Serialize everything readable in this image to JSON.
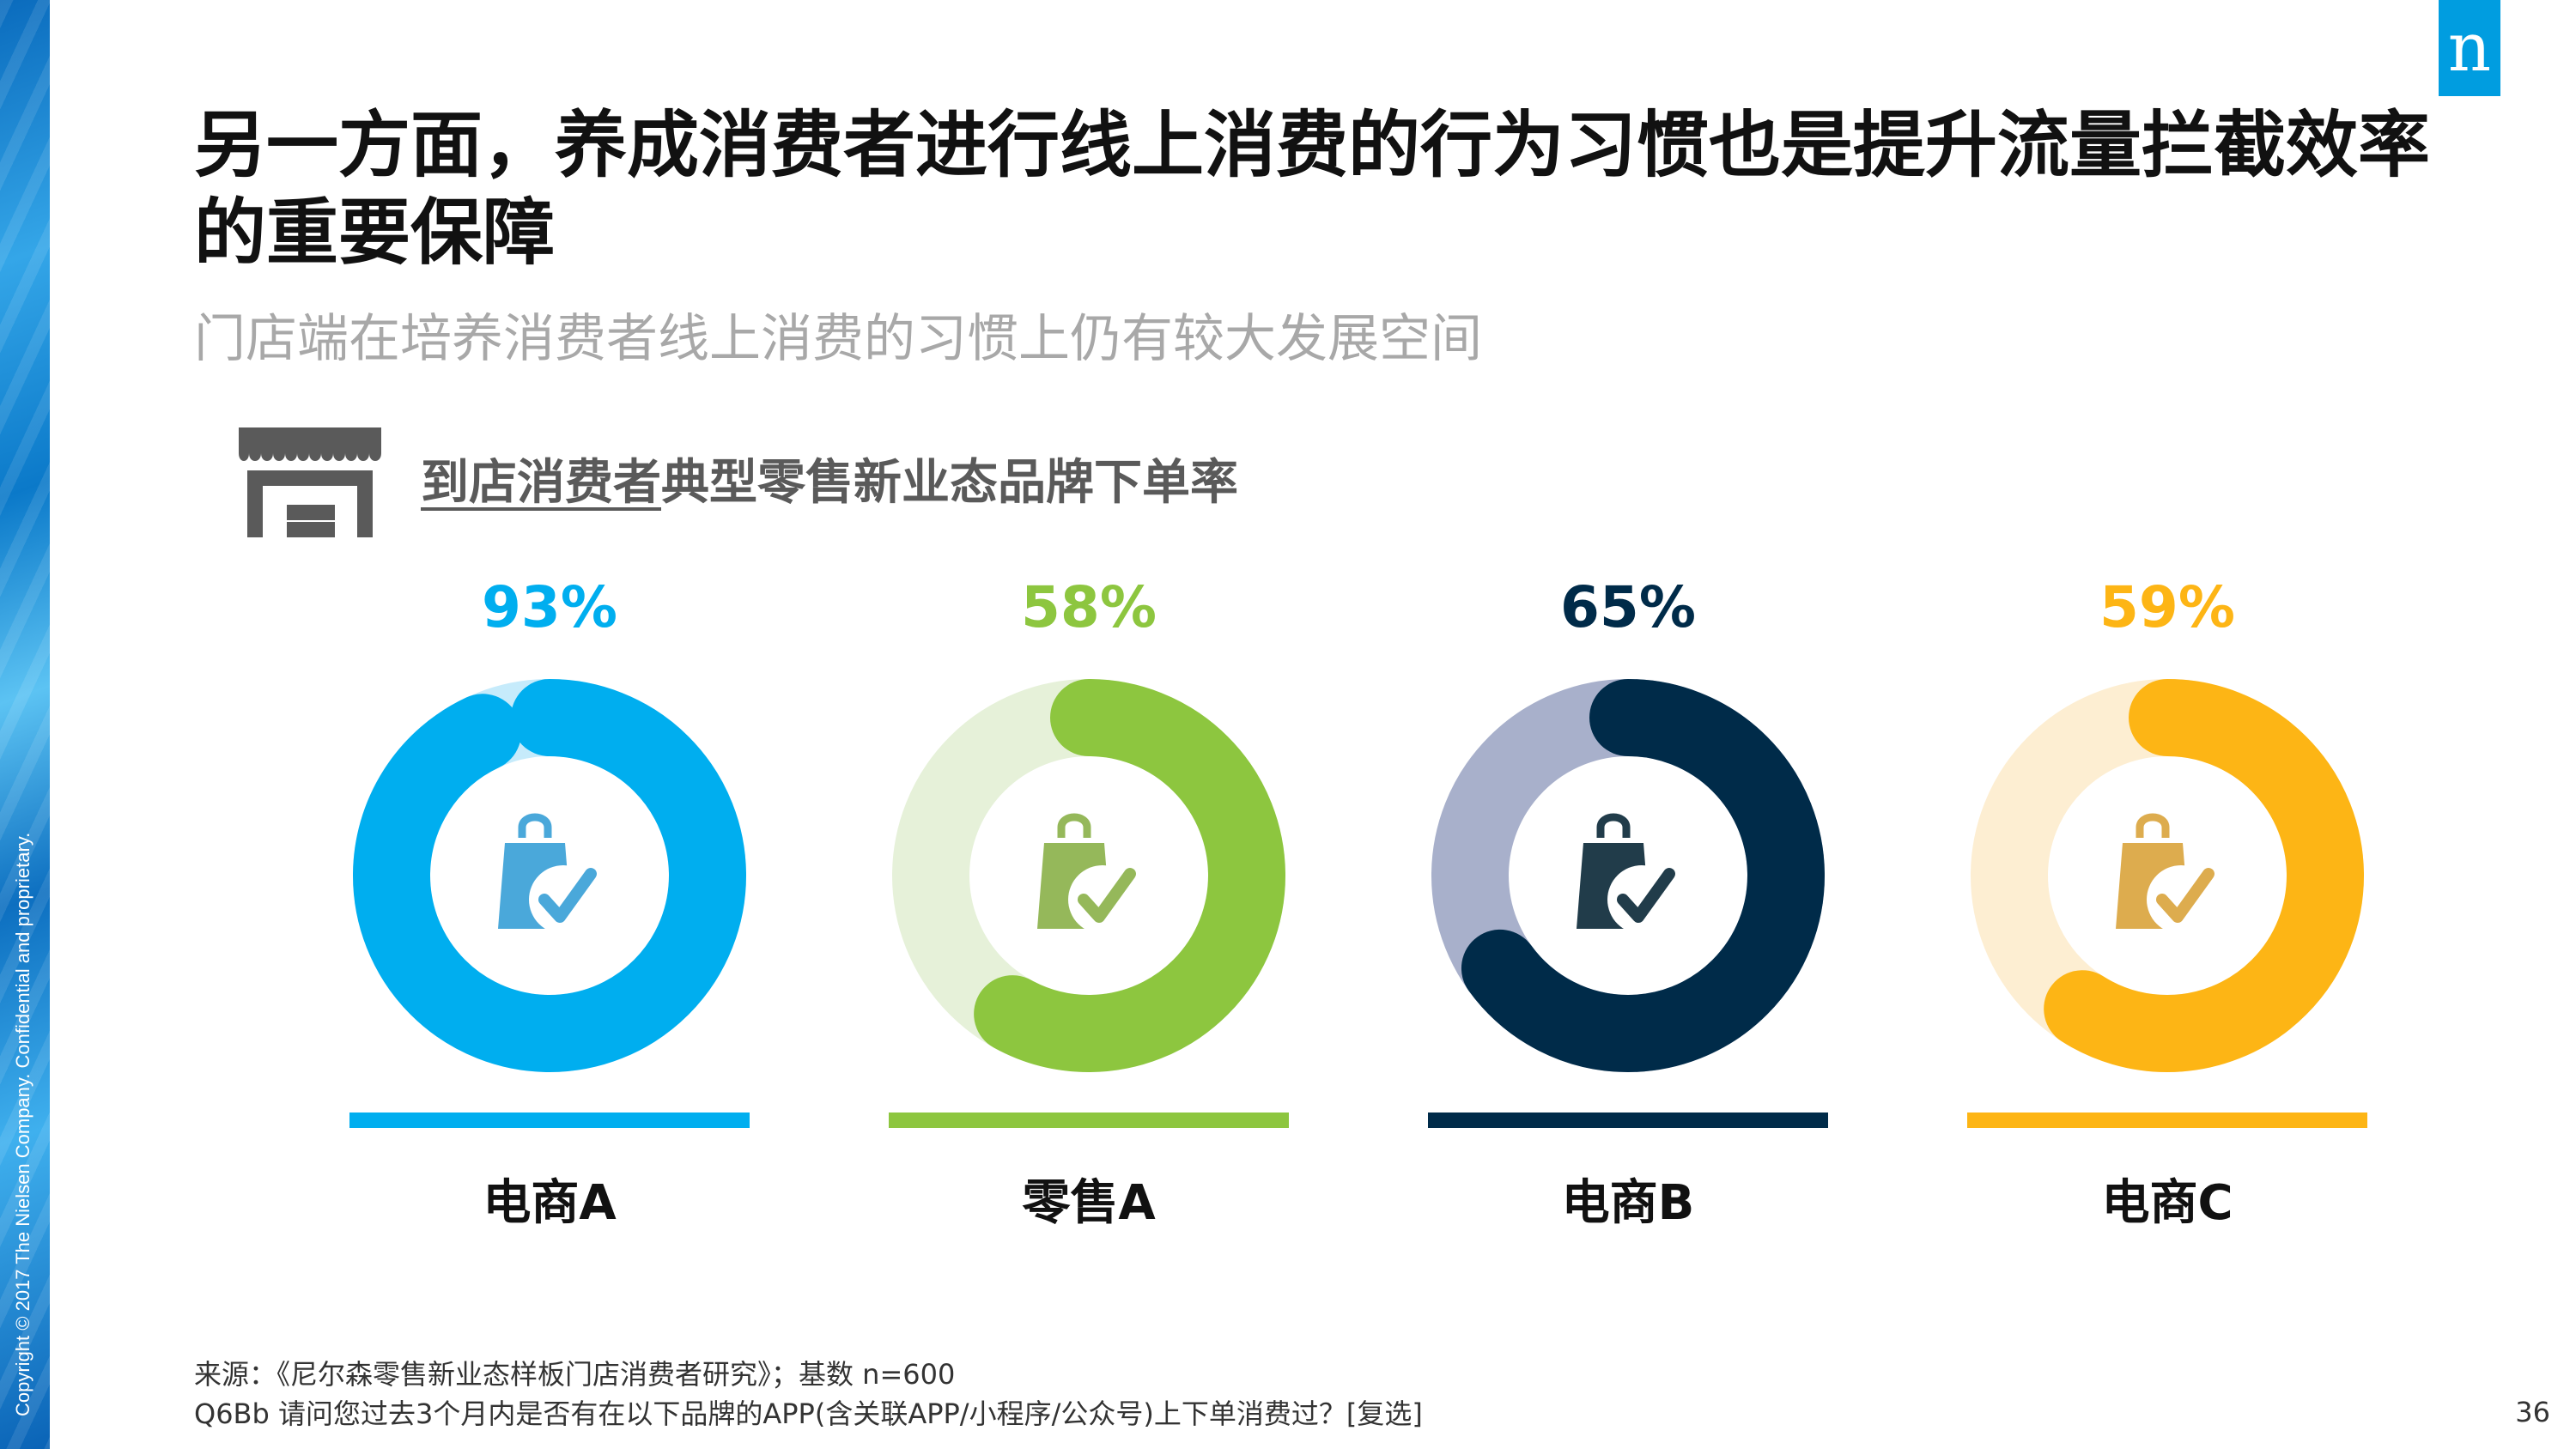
{
  "brand": {
    "logo_letter": "n",
    "copyright": "Copyright © 2017 The Nielsen Company. Confidential and proprietary."
  },
  "title": "另一方面，养成消费者进行线上消费的行为习惯也是提升流量拦截效率的重要保障",
  "subtitle": "门店端在培养消费者线上消费的习惯上仍有较大发展空间",
  "chart_heading": {
    "underlined": "到店消费者",
    "rest": "典型零售新业态品牌下单率"
  },
  "chart_data": {
    "type": "donut",
    "unit": "%",
    "categories": [
      "电商A",
      "零售A",
      "电商B",
      "电商C"
    ],
    "values": [
      93,
      58,
      65,
      59
    ],
    "labels": [
      "93%",
      "58%",
      "65%",
      "59%"
    ],
    "colors": [
      "#00aeef",
      "#8dc63f",
      "#002b49",
      "#fdb515"
    ],
    "track_colors": [
      "#c6ebfb",
      "#e6f1d9",
      "#a8b0cb",
      "#fdeed2"
    ],
    "icon_colors": [
      "#4aa8da",
      "#95b85a",
      "#213c4a",
      "#ddac4e"
    ],
    "center_icon": "shopping-bag-check-icon"
  },
  "source": {
    "line1": "来源：《尼尔森零售新业态样板门店消费者研究》；基数 n=600",
    "line2": "Q6Bb 请问您过去3个月内是否有在以下品牌的APP(含关联APP/小程序/公众号)上下单消费过？[复选]"
  },
  "page_number": "36"
}
